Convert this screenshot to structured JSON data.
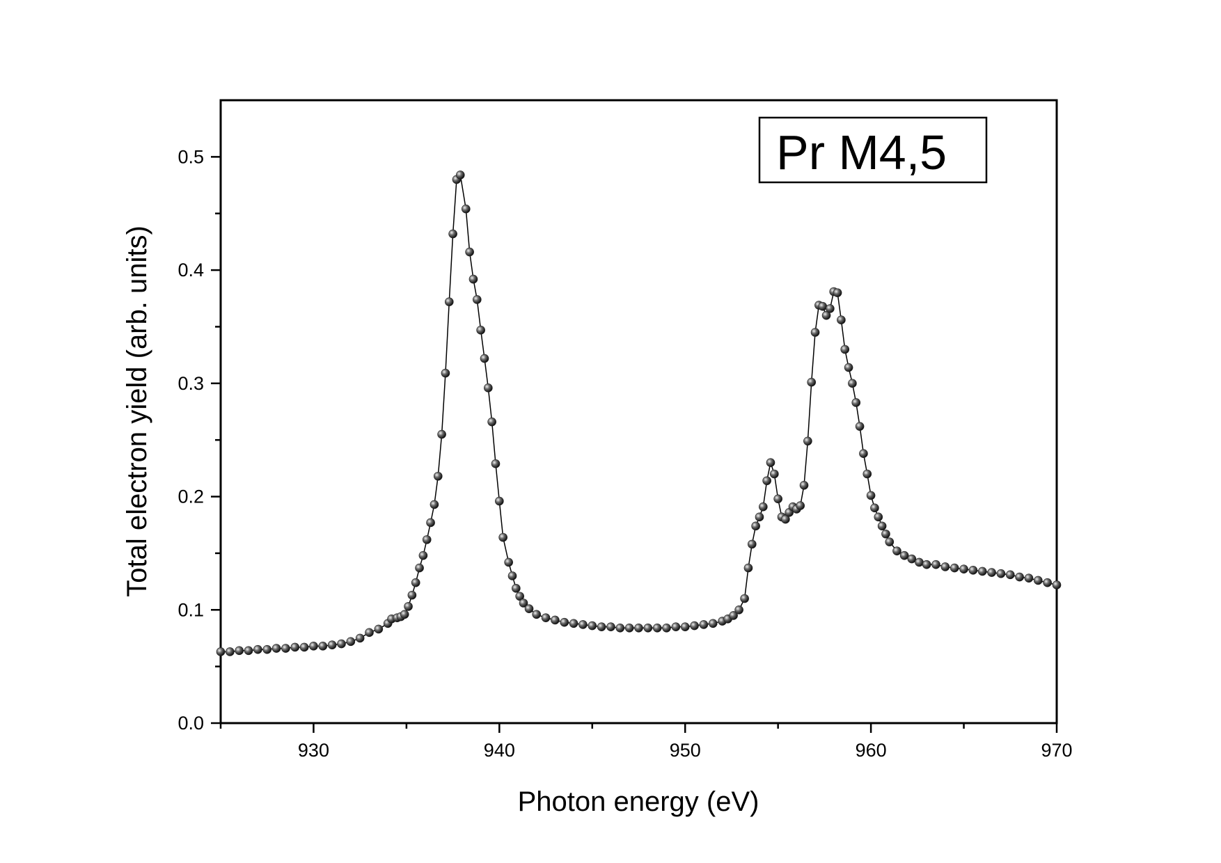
{
  "chart_data": {
    "type": "scatter",
    "title": "",
    "xlabel": "Photon energy (eV)",
    "ylabel": "Total electron yield (arb. units)",
    "xlim": [
      925,
      970
    ],
    "ylim": [
      0.0,
      0.55
    ],
    "xticks": [
      "930",
      "940",
      "950",
      "960",
      "970"
    ],
    "xtick_values": [
      930,
      940,
      950,
      960,
      970
    ],
    "yticks": [
      "0.0",
      "0.1",
      "0.2",
      "0.3",
      "0.4",
      "0.5"
    ],
    "ytick_values": [
      0.0,
      0.1,
      0.2,
      0.3,
      0.4,
      0.5
    ],
    "grid": false,
    "legend": {
      "text": "Pr M4,5",
      "placement": "top-right"
    },
    "series": [
      {
        "name": "Pr M4,5",
        "style": "line+sphere-markers",
        "color": "#000000",
        "x": [
          925,
          925.5,
          926,
          926.5,
          927,
          927.5,
          928,
          928.5,
          929,
          929.5,
          930,
          930.5,
          931,
          931.5,
          932,
          932.5,
          933,
          933.5,
          934,
          934.2,
          934.5,
          934.7,
          934.9,
          935.1,
          935.3,
          935.5,
          935.7,
          935.9,
          936.1,
          936.3,
          936.5,
          936.7,
          936.9,
          937.1,
          937.3,
          937.5,
          937.7,
          937.9,
          938.2,
          938.4,
          938.6,
          938.8,
          939.0,
          939.2,
          939.4,
          939.6,
          939.8,
          940.0,
          940.2,
          940.5,
          940.7,
          940.9,
          941.1,
          941.3,
          941.6,
          942,
          942.5,
          943,
          943.5,
          944,
          944.5,
          945,
          945.5,
          946,
          946.5,
          947,
          947.5,
          948,
          948.5,
          949,
          949.5,
          950,
          950.5,
          951,
          951.5,
          952,
          952.3,
          952.6,
          952.9,
          953.2,
          953.4,
          953.6,
          953.8,
          954.0,
          954.2,
          954.4,
          954.6,
          954.8,
          955.0,
          955.2,
          955.4,
          955.6,
          955.8,
          956.0,
          956.2,
          956.4,
          956.6,
          956.8,
          957.0,
          957.2,
          957.4,
          957.6,
          957.8,
          958.0,
          958.2,
          958.4,
          958.6,
          958.8,
          959.0,
          959.2,
          959.4,
          959.6,
          959.8,
          960.0,
          960.2,
          960.4,
          960.6,
          960.8,
          961.0,
          961.4,
          961.8,
          962.2,
          962.6,
          963,
          963.5,
          964,
          964.5,
          965,
          965.5,
          966,
          966.5,
          967,
          967.5,
          968,
          968.5,
          969,
          969.5,
          970
        ],
        "y": [
          0.063,
          0.063,
          0.064,
          0.064,
          0.065,
          0.065,
          0.066,
          0.066,
          0.067,
          0.067,
          0.068,
          0.068,
          0.069,
          0.07,
          0.072,
          0.075,
          0.08,
          0.083,
          0.088,
          0.092,
          0.093,
          0.094,
          0.096,
          0.103,
          0.113,
          0.124,
          0.137,
          0.148,
          0.162,
          0.177,
          0.193,
          0.218,
          0.255,
          0.309,
          0.372,
          0.432,
          0.48,
          0.484,
          0.454,
          0.416,
          0.392,
          0.374,
          0.347,
          0.322,
          0.296,
          0.266,
          0.229,
          0.196,
          0.164,
          0.142,
          0.13,
          0.119,
          0.112,
          0.106,
          0.101,
          0.096,
          0.093,
          0.091,
          0.089,
          0.088,
          0.087,
          0.086,
          0.085,
          0.085,
          0.084,
          0.084,
          0.084,
          0.084,
          0.084,
          0.084,
          0.085,
          0.085,
          0.086,
          0.087,
          0.088,
          0.09,
          0.092,
          0.095,
          0.1,
          0.11,
          0.137,
          0.158,
          0.174,
          0.182,
          0.191,
          0.214,
          0.23,
          0.22,
          0.198,
          0.182,
          0.18,
          0.186,
          0.191,
          0.189,
          0.192,
          0.21,
          0.249,
          0.301,
          0.345,
          0.369,
          0.368,
          0.36,
          0.366,
          0.381,
          0.38,
          0.356,
          0.33,
          0.314,
          0.3,
          0.283,
          0.262,
          0.238,
          0.22,
          0.201,
          0.19,
          0.182,
          0.174,
          0.167,
          0.16,
          0.152,
          0.148,
          0.145,
          0.142,
          0.14,
          0.14,
          0.138,
          0.137,
          0.136,
          0.135,
          0.134,
          0.133,
          0.132,
          0.131,
          0.129,
          0.128,
          0.126,
          0.124,
          0.122
        ]
      }
    ]
  }
}
